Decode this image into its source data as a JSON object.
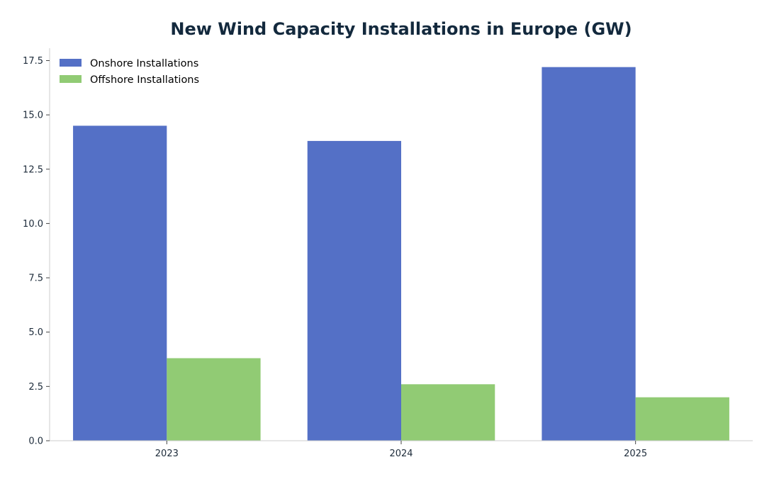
{
  "chart_data": {
    "type": "bar",
    "title": "New Wind Capacity Installations in Europe (GW)",
    "xlabel": "",
    "ylabel": "",
    "categories": [
      "2023",
      "2024",
      "2025"
    ],
    "series": [
      {
        "name": "Onshore Installations",
        "values": [
          14.5,
          13.8,
          17.2
        ],
        "color": "#5470c6"
      },
      {
        "name": "Offshore Installations",
        "values": [
          3.8,
          2.6,
          2.0
        ],
        "color": "#91cb74"
      }
    ],
    "ylim": [
      0,
      18.07
    ],
    "yticks": [
      "0.0",
      "2.5",
      "5.0",
      "7.5",
      "10.0",
      "12.5",
      "15.0",
      "17.5"
    ],
    "grid": false,
    "legend_position": "top-left"
  }
}
